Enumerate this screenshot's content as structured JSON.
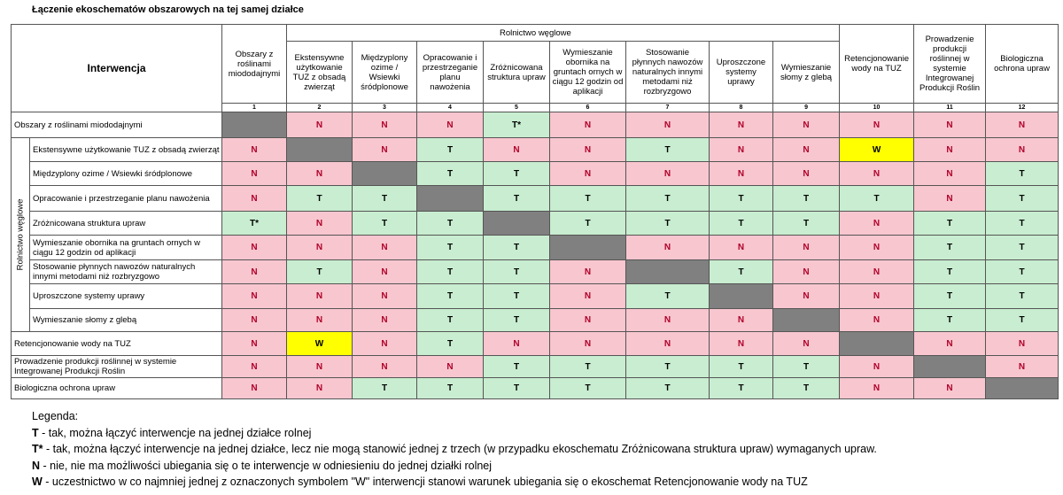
{
  "title": "Łączenie ekoschematów obszarowych na tej samej działce",
  "header": {
    "intervention": "Interwencja",
    "group": "Rolnictwo węglowe"
  },
  "columns": [
    {
      "num": "1",
      "label": "Obszary z roślinami miododajnymi"
    },
    {
      "num": "2",
      "label": "Ekstensywne użytkowanie TUZ z obsadą zwierząt"
    },
    {
      "num": "3",
      "label": "Międzyplony ozime / Wsiewki śródplonowe"
    },
    {
      "num": "4",
      "label": "Opracowanie i przestrzeganie planu nawożenia"
    },
    {
      "num": "5",
      "label": "Zróżnicowana struktura upraw"
    },
    {
      "num": "6",
      "label": "Wymieszanie obornika na gruntach ornych w ciągu 12 godzin od aplikacji"
    },
    {
      "num": "7",
      "label": "Stosowanie płynnych nawozów naturalnych innymi metodami niż rozbryzgowo"
    },
    {
      "num": "8",
      "label": "Uproszczone systemy uprawy"
    },
    {
      "num": "9",
      "label": "Wymieszanie słomy z glebą"
    },
    {
      "num": "10",
      "label": "Retencjonowanie wody na TUZ"
    },
    {
      "num": "11",
      "label": "Prowadzenie produkcji roślinnej w systemie Integrowanej Produkcji Roślin"
    },
    {
      "num": "12",
      "label": "Biologiczna ochrona upraw"
    }
  ],
  "rows": [
    {
      "label": "Obszary z roślinami miododajnymi",
      "cells": [
        "",
        "N",
        "N",
        "N",
        "T*",
        "N",
        "N",
        "N",
        "N",
        "N",
        "N",
        "N"
      ]
    },
    {
      "label": "Ekstensywne użytkowanie TUZ z obsadą zwierząt",
      "cells": [
        "N",
        "",
        "N",
        "T",
        "N",
        "N",
        "T",
        "N",
        "N",
        "W",
        "N",
        "N"
      ]
    },
    {
      "label": "Międzyplony ozime / Wsiewki śródplonowe",
      "cells": [
        "N",
        "N",
        "",
        "T",
        "T",
        "N",
        "N",
        "N",
        "N",
        "N",
        "N",
        "T"
      ]
    },
    {
      "label": "Opracowanie i przestrzeganie planu nawożenia",
      "cells": [
        "N",
        "T",
        "T",
        "",
        "T",
        "T",
        "T",
        "T",
        "T",
        "T",
        "N",
        "T"
      ]
    },
    {
      "label": "Zróżnicowana struktura upraw",
      "cells": [
        "T*",
        "N",
        "T",
        "T",
        "",
        "T",
        "T",
        "T",
        "T",
        "N",
        "T",
        "T"
      ]
    },
    {
      "label": "Wymieszanie obornika na gruntach ornych w ciągu 12 godzin od aplikacji",
      "cells": [
        "N",
        "N",
        "N",
        "T",
        "T",
        "",
        "N",
        "N",
        "N",
        "N",
        "T",
        "T"
      ]
    },
    {
      "label": "Stosowanie płynnych nawozów naturalnych innymi metodami niż rozbryzgowo",
      "cells": [
        "N",
        "T",
        "N",
        "T",
        "T",
        "N",
        "",
        "T",
        "N",
        "N",
        "T",
        "T"
      ]
    },
    {
      "label": "Uproszczone systemy uprawy",
      "cells": [
        "N",
        "N",
        "N",
        "T",
        "T",
        "N",
        "T",
        "",
        "N",
        "N",
        "T",
        "T"
      ]
    },
    {
      "label": "Wymieszanie słomy z glebą",
      "cells": [
        "N",
        "N",
        "N",
        "T",
        "T",
        "N",
        "N",
        "N",
        "",
        "N",
        "T",
        "T"
      ]
    },
    {
      "label": "Retencjonowanie wody na TUZ",
      "cells": [
        "N",
        "W",
        "N",
        "T",
        "N",
        "N",
        "N",
        "N",
        "N",
        "",
        "N",
        "N"
      ]
    },
    {
      "label": "Prowadzenie produkcji roślinnej w systemie Integrowanej Produkcji Roślin",
      "cells": [
        "N",
        "N",
        "N",
        "N",
        "T",
        "T",
        "T",
        "T",
        "T",
        "N",
        "",
        "N"
      ]
    },
    {
      "label": "Biologiczna ochrona upraw",
      "cells": [
        "N",
        "N",
        "T",
        "T",
        "T",
        "T",
        "T",
        "T",
        "T",
        "N",
        "N",
        ""
      ]
    }
  ],
  "legend": {
    "title": "Legenda:",
    "items": [
      {
        "key": "T",
        "text": " - tak, można łączyć interwencje na jednej działce rolnej"
      },
      {
        "key": "T*",
        "text": " - tak, można łączyć interwencje na jednej działce, lecz nie mogą stanowić jednej z trzech (w przypadku ekoschematu Zróżnicowana struktura upraw) wymaganych upraw."
      },
      {
        "key": "N",
        "text": " - nie, nie ma możliwości ubiegania się o te interwencje w odniesieniu do jednej działki rolnej"
      },
      {
        "key": "W",
        "text": " - uczestnictwo w co najmniej jednej z oznaczonych symbolem \"W\" interwencji stanowi warunek ubiegania się o ekoschemat Retencjonowanie wody na TUZ"
      }
    ]
  },
  "colors": {
    "N": "#f8c6cf",
    "T": "#c8edd0",
    "W": "#ffff00",
    "blocked": "#808080",
    "N_text": "#b0002a"
  }
}
